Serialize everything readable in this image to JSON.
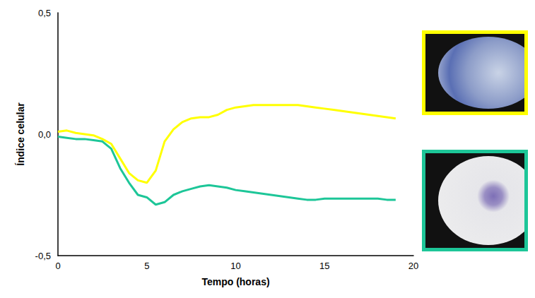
{
  "chart_data": {
    "type": "line",
    "x_label": "Tempo (horas)",
    "y_label": "Índice celular",
    "x": [
      0,
      0.5,
      1,
      1.5,
      2,
      2.5,
      3,
      3.5,
      4,
      4.5,
      5,
      5.5,
      6,
      6.5,
      7,
      7.5,
      8,
      8.5,
      9,
      9.5,
      10,
      10.5,
      11,
      11.5,
      12,
      12.5,
      13,
      13.5,
      14,
      14.5,
      15,
      15.5,
      16,
      16.5,
      17,
      17.5,
      18,
      18.5,
      19
    ],
    "series": [
      {
        "color": "#ffff00",
        "values": [
          0.01,
          0.015,
          0.005,
          0.0,
          -0.005,
          -0.02,
          -0.04,
          -0.1,
          -0.16,
          -0.19,
          -0.2,
          -0.15,
          -0.03,
          0.02,
          0.05,
          0.065,
          0.07,
          0.07,
          0.08,
          0.1,
          0.11,
          0.115,
          0.12,
          0.12,
          0.12,
          0.12,
          0.12,
          0.12,
          0.115,
          0.11,
          0.105,
          0.1,
          0.095,
          0.09,
          0.085,
          0.08,
          0.075,
          0.07,
          0.065
        ]
      },
      {
        "color": "#1dc698",
        "values": [
          -0.01,
          -0.015,
          -0.02,
          -0.02,
          -0.025,
          -0.03,
          -0.06,
          -0.14,
          -0.2,
          -0.25,
          -0.26,
          -0.29,
          -0.28,
          -0.25,
          -0.235,
          -0.225,
          -0.215,
          -0.21,
          -0.215,
          -0.22,
          -0.23,
          -0.235,
          -0.24,
          -0.245,
          -0.25,
          -0.255,
          -0.26,
          -0.265,
          -0.27,
          -0.27,
          -0.265,
          -0.265,
          -0.265,
          -0.265,
          -0.265,
          -0.265,
          -0.265,
          -0.27,
          -0.27
        ]
      }
    ],
    "xlim": [
      0,
      20
    ],
    "xticks": [
      0,
      5,
      10,
      15,
      20
    ],
    "ylim": [
      -0.5,
      0.5
    ],
    "yticks": [
      {
        "value": -0.5,
        "label": "-0,5"
      },
      {
        "value": 0,
        "label": "0,0"
      },
      {
        "value": 0.5,
        "label": "0,5"
      }
    ],
    "grid": false,
    "tick_labels": true
  }
}
